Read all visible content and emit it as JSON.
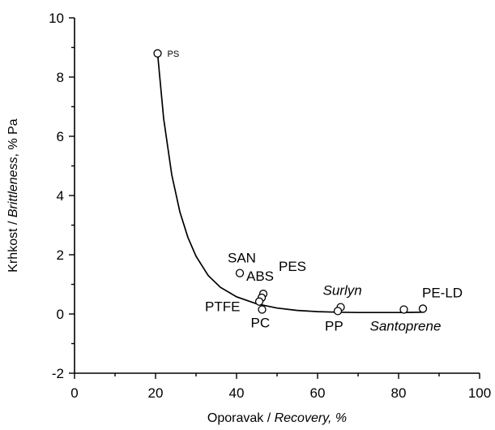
{
  "chart_data": {
    "type": "scatter",
    "title": "",
    "xlabel": {
      "plain": "Oporavak / ",
      "italic": "Recovery, %"
    },
    "ylabel": {
      "plain_before": "Krhkost / ",
      "italic": "Brittleness",
      "plain_after": ", % Pa"
    },
    "xlim": [
      0,
      100
    ],
    "ylim": [
      -2,
      10
    ],
    "x_ticks": [
      0,
      20,
      40,
      60,
      80,
      100
    ],
    "x_tick_labels": [
      "0",
      "20",
      "40",
      "60",
      "80",
      "100"
    ],
    "y_ticks": [
      -2,
      0,
      2,
      4,
      6,
      8,
      10
    ],
    "y_tick_labels": [
      "-2",
      "0",
      "2",
      "4",
      "6",
      "8",
      "10"
    ],
    "grid": false,
    "points": [
      {
        "name": "ps",
        "x": 20.5,
        "y": 8.8,
        "label": "PS"
      },
      {
        "name": "san",
        "x": 40.8,
        "y": 1.38,
        "label": "SAN"
      },
      {
        "name": "abs",
        "x": 46.6,
        "y": 0.68,
        "label": "ABS"
      },
      {
        "name": "pes",
        "x": 46.2,
        "y": 0.55,
        "label": "PES"
      },
      {
        "name": "ptfe",
        "x": 45.6,
        "y": 0.42,
        "label": "PTFE"
      },
      {
        "name": "pc",
        "x": 46.3,
        "y": 0.15,
        "label": "PC"
      },
      {
        "name": "surlyn",
        "x": 65.7,
        "y": 0.23,
        "label": "Surlyn"
      },
      {
        "name": "pp",
        "x": 65.0,
        "y": 0.1,
        "label": "PP"
      },
      {
        "name": "santoprene",
        "x": 81.3,
        "y": 0.15,
        "label": "Santoprene"
      },
      {
        "name": "pe-ld",
        "x": 86.0,
        "y": 0.18,
        "label": "PE-LD"
      }
    ],
    "fit_curve": {
      "type": "power-law trend line",
      "x": [
        20.5,
        22,
        24,
        26,
        28,
        30,
        33,
        36,
        40,
        45,
        50,
        55,
        60,
        65,
        70,
        75,
        80,
        86
      ],
      "y": [
        8.8,
        6.6,
        4.7,
        3.45,
        2.58,
        1.95,
        1.3,
        0.9,
        0.58,
        0.34,
        0.2,
        0.12,
        0.08,
        0.06,
        0.05,
        0.05,
        0.05,
        0.06
      ]
    }
  }
}
